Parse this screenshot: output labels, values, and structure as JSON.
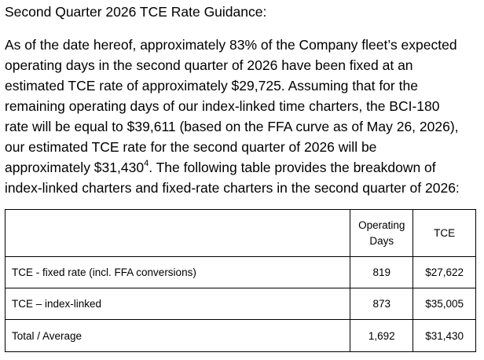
{
  "heading": "Second Quarter 2026 TCE Rate Guidance:",
  "paragraph": {
    "lines": [
      "As of the date hereof, approximately 83% of the Company fleet’s expected",
      "operating days in the second quarter of 2026 have been fixed at an",
      "estimated TCE rate of approximately $29,725. Assuming that for the",
      "remaining operating days of our index-linked time charters, the BCI-180",
      "rate will be equal to $39,611 (based on the FFA curve as of May 26, 2026),",
      "our estimated TCE rate for the second quarter of 2026 will be"
    ],
    "line7_before": "approximately $31,430",
    "footnote_ref": "4",
    "line7_after": ". The following table provides the breakdown of",
    "line8": "index-linked charters and fixed-rate charters in the second quarter of 2026:"
  },
  "table": {
    "headers": {
      "label": "",
      "operating_days_line1": "Operating",
      "operating_days_line2": "Days",
      "tce": "TCE"
    },
    "rows": [
      {
        "label": "TCE - fixed rate (incl. FFA conversions)",
        "operating_days": "819",
        "tce": "$27,622"
      },
      {
        "label": "TCE – index-linked",
        "operating_days": "873",
        "tce": "$35,005"
      },
      {
        "label": "Total / Average",
        "operating_days": "1,692",
        "tce": "$31,430"
      }
    ]
  }
}
